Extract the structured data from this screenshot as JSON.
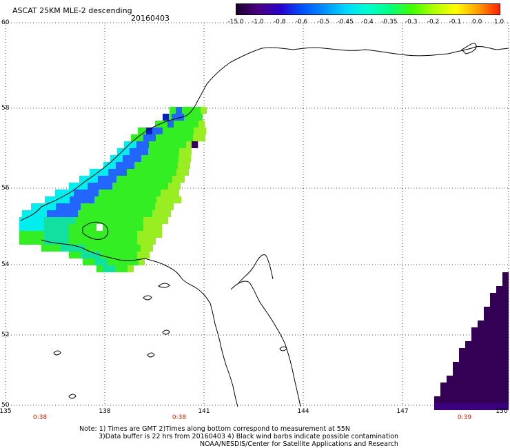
{
  "title": "ASCAT 25KM MLE-2 descending",
  "date": "20160403",
  "colorbar": {
    "labels": [
      "-15.0",
      "-1.0",
      "-0.8",
      "-0.6",
      "-0.5",
      "-0.45",
      "-0.4",
      "-0.35",
      "-0.3",
      "-0.2",
      "-0.1",
      "0.0",
      "1.0"
    ],
    "colors": [
      "#1a0030",
      "#4b0082",
      "#2a00cc",
      "#0050ff",
      "#0090ff",
      "#00d8ff",
      "#00ffd0",
      "#00ff80",
      "#40ff00",
      "#b0ff00",
      "#ffff00",
      "#ffa000",
      "#ff2000"
    ]
  },
  "map": {
    "lat_labels": [
      "60",
      "58",
      "56",
      "54",
      "52",
      "50"
    ],
    "lon_labels": [
      "135",
      "138",
      "141",
      "144",
      "147",
      "150"
    ],
    "time_labels": [
      "0:38",
      "0:38",
      "0:39"
    ],
    "cell_colors": {
      "green": "#33ee22",
      "lightgreen": "#99ee22",
      "teal": "#11e0a0",
      "cyan": "#00eeee",
      "blue": "#2266ff",
      "darkblue": "#0022bb",
      "purple": "#330055"
    }
  },
  "notes": [
    "Note: 1) Times are GMT 2)Times along bottom correspond to measurement at 55N",
    "3)Data buffer is 22 hrs from 20160403 4) Black wind barbs indicate possible contamination",
    "NOAA/NESDIS/Center for Satellite Applications and Research"
  ]
}
